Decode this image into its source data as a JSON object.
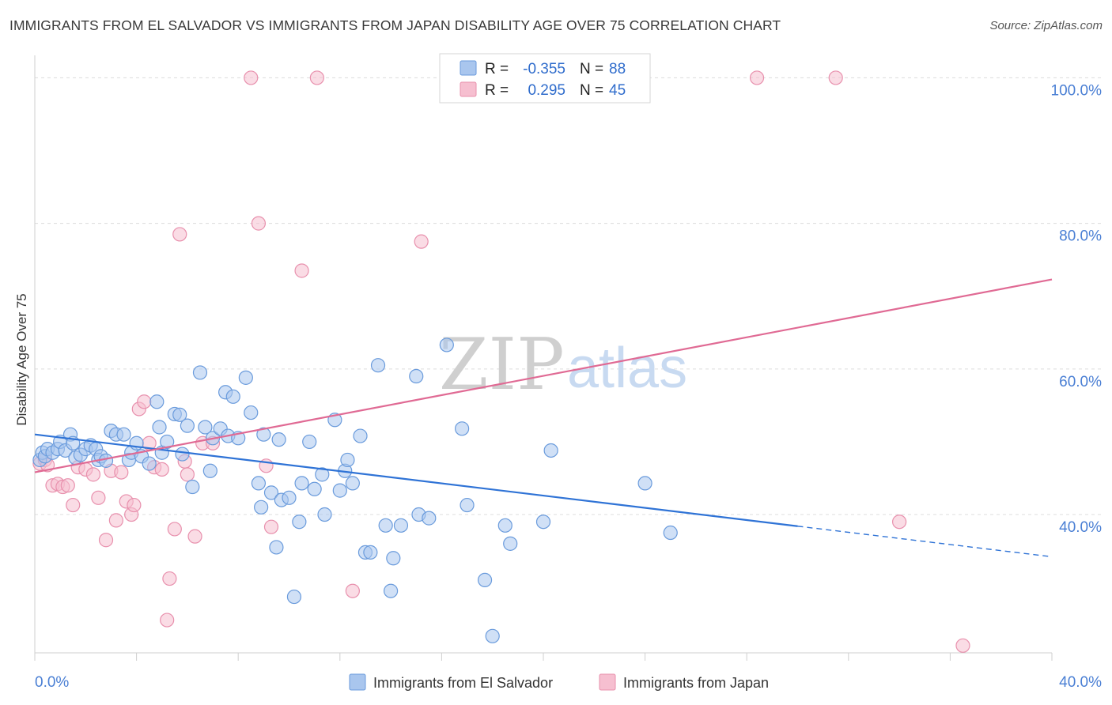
{
  "title": "IMMIGRANTS FROM EL SALVADOR VS IMMIGRANTS FROM JAPAN DISABILITY AGE OVER 75 CORRELATION CHART",
  "source": "Source: ZipAtlas.com",
  "watermark": {
    "zip": "ZIP",
    "atlas": "atlas"
  },
  "colors": {
    "blue_fill": "#a9c6ee",
    "blue_stroke": "#6a9bdc",
    "blue_line": "#2f73d6",
    "pink_fill": "#f6bfd0",
    "pink_stroke": "#e890ad",
    "pink_line": "#e06a94",
    "grid": "#dcdcdc",
    "tick_label": "#4a7fd4"
  },
  "legend": {
    "rows": [
      {
        "r_label": "R =",
        "r_value": "-0.355",
        "n_label": "N =",
        "n_value": "88",
        "color": "blue"
      },
      {
        "r_label": "R =",
        "r_value": "0.295",
        "n_label": "N =",
        "n_value": "45",
        "color": "pink"
      }
    ]
  },
  "bottom_legend": [
    {
      "label": "Immigrants from El Salvador",
      "color": "blue"
    },
    {
      "label": "Immigrants from Japan",
      "color": "pink"
    }
  ],
  "chart_data": {
    "type": "scatter",
    "title": "IMMIGRANTS FROM EL SALVADOR VS IMMIGRANTS FROM JAPAN DISABILITY AGE OVER 75 CORRELATION CHART",
    "xlabel": "",
    "ylabel": "Disability Age Over 75",
    "xlim": [
      0,
      40
    ],
    "ylim": [
      21,
      102
    ],
    "x_tick_labels": [
      "0.0%",
      "40.0%"
    ],
    "y_ticks": [
      40,
      60,
      80,
      100
    ],
    "y_tick_labels": [
      "40.0%",
      "60.0%",
      "80.0%",
      "100.0%"
    ],
    "grid": true,
    "legend_position": "top-center",
    "series": [
      {
        "name": "Immigrants from El Salvador",
        "color": "blue",
        "r": -0.355,
        "n": 88,
        "trend": {
          "x": [
            0,
            30
          ],
          "y": [
            51.0,
            38.4
          ],
          "dashed_to": [
            40,
            34.2
          ]
        },
        "points": [
          [
            0.2,
            47.5
          ],
          [
            0.3,
            48.5
          ],
          [
            0.4,
            48.0
          ],
          [
            0.5,
            49.0
          ],
          [
            0.7,
            48.5
          ],
          [
            0.9,
            49.0
          ],
          [
            1.0,
            50.0
          ],
          [
            1.2,
            48.8
          ],
          [
            1.4,
            51.0
          ],
          [
            1.5,
            49.8
          ],
          [
            1.6,
            47.8
          ],
          [
            1.8,
            48.2
          ],
          [
            2.0,
            49.0
          ],
          [
            2.2,
            49.5
          ],
          [
            2.4,
            49.0
          ],
          [
            2.5,
            47.5
          ],
          [
            2.6,
            48.0
          ],
          [
            2.8,
            47.4
          ],
          [
            3.0,
            51.5
          ],
          [
            3.2,
            51.0
          ],
          [
            3.5,
            51.0
          ],
          [
            3.7,
            47.5
          ],
          [
            3.8,
            48.5
          ],
          [
            4.0,
            49.8
          ],
          [
            4.2,
            48.0
          ],
          [
            4.5,
            47.0
          ],
          [
            4.8,
            55.5
          ],
          [
            4.9,
            52.0
          ],
          [
            5.0,
            48.5
          ],
          [
            5.2,
            50.0
          ],
          [
            5.5,
            53.8
          ],
          [
            5.7,
            53.7
          ],
          [
            5.8,
            48.3
          ],
          [
            6.0,
            52.2
          ],
          [
            6.2,
            43.8
          ],
          [
            6.5,
            59.5
          ],
          [
            6.7,
            52.0
          ],
          [
            6.9,
            46.0
          ],
          [
            7.0,
            50.5
          ],
          [
            7.3,
            51.8
          ],
          [
            7.5,
            56.8
          ],
          [
            7.6,
            50.8
          ],
          [
            7.8,
            56.2
          ],
          [
            8.0,
            50.5
          ],
          [
            8.3,
            58.8
          ],
          [
            8.5,
            54.0
          ],
          [
            8.8,
            44.3
          ],
          [
            8.9,
            41.0
          ],
          [
            9.0,
            51.0
          ],
          [
            9.3,
            43.0
          ],
          [
            9.5,
            35.5
          ],
          [
            9.6,
            50.3
          ],
          [
            9.7,
            42.0
          ],
          [
            10.0,
            42.3
          ],
          [
            10.2,
            28.7
          ],
          [
            10.4,
            39.0
          ],
          [
            10.5,
            44.3
          ],
          [
            10.8,
            50.0
          ],
          [
            11.0,
            43.5
          ],
          [
            11.3,
            45.5
          ],
          [
            11.4,
            40.0
          ],
          [
            11.8,
            53.0
          ],
          [
            12.0,
            43.3
          ],
          [
            12.2,
            46.0
          ],
          [
            12.3,
            47.5
          ],
          [
            12.5,
            44.3
          ],
          [
            12.8,
            50.8
          ],
          [
            13.0,
            34.8
          ],
          [
            13.2,
            34.8
          ],
          [
            13.5,
            60.5
          ],
          [
            13.8,
            38.5
          ],
          [
            14.0,
            29.5
          ],
          [
            14.1,
            34.0
          ],
          [
            14.4,
            38.5
          ],
          [
            15.0,
            59.0
          ],
          [
            15.1,
            40.0
          ],
          [
            15.5,
            39.5
          ],
          [
            16.2,
            63.3
          ],
          [
            16.8,
            51.8
          ],
          [
            17.0,
            41.3
          ],
          [
            17.7,
            31.0
          ],
          [
            18.0,
            23.3
          ],
          [
            18.5,
            38.5
          ],
          [
            18.7,
            36.0
          ],
          [
            20.0,
            39.0
          ],
          [
            20.3,
            48.8
          ],
          [
            24.0,
            44.3
          ],
          [
            25.0,
            37.5
          ]
        ]
      },
      {
        "name": "Immigrants from Japan",
        "color": "pink",
        "r": 0.295,
        "n": 45,
        "trend": {
          "x": [
            0,
            40
          ],
          "y": [
            45.8,
            72.3
          ]
        },
        "points": [
          [
            0.2,
            47.0
          ],
          [
            0.4,
            47.5
          ],
          [
            0.5,
            46.8
          ],
          [
            0.7,
            44.0
          ],
          [
            0.9,
            44.2
          ],
          [
            1.1,
            43.8
          ],
          [
            1.3,
            44.0
          ],
          [
            1.5,
            41.3
          ],
          [
            1.7,
            46.5
          ],
          [
            2.0,
            46.2
          ],
          [
            2.3,
            45.5
          ],
          [
            2.5,
            42.3
          ],
          [
            2.8,
            36.5
          ],
          [
            3.0,
            46.0
          ],
          [
            3.2,
            39.2
          ],
          [
            3.4,
            45.8
          ],
          [
            3.6,
            41.8
          ],
          [
            3.8,
            40.0
          ],
          [
            3.9,
            41.3
          ],
          [
            4.1,
            54.5
          ],
          [
            4.3,
            55.5
          ],
          [
            4.5,
            49.8
          ],
          [
            4.7,
            46.5
          ],
          [
            5.0,
            46.2
          ],
          [
            5.2,
            25.5
          ],
          [
            5.3,
            31.2
          ],
          [
            5.5,
            38.0
          ],
          [
            5.7,
            78.5
          ],
          [
            5.9,
            47.3
          ],
          [
            6.0,
            45.5
          ],
          [
            6.3,
            37.0
          ],
          [
            6.6,
            49.8
          ],
          [
            7.0,
            49.8
          ],
          [
            8.5,
            100.0
          ],
          [
            8.8,
            80.0
          ],
          [
            9.1,
            46.7
          ],
          [
            9.3,
            38.3
          ],
          [
            10.5,
            73.5
          ],
          [
            11.1,
            100.0
          ],
          [
            12.5,
            29.5
          ],
          [
            15.2,
            77.5
          ],
          [
            28.4,
            100.0
          ],
          [
            31.5,
            100.0
          ],
          [
            34.0,
            39.0
          ],
          [
            36.5,
            22.0
          ]
        ]
      }
    ]
  }
}
